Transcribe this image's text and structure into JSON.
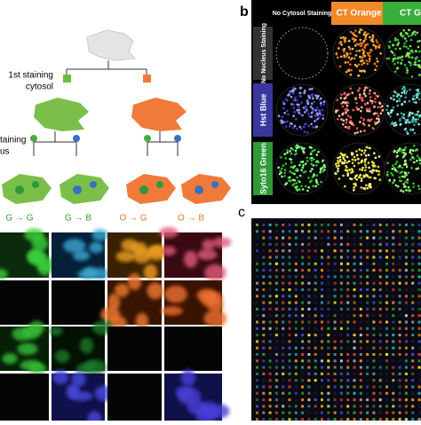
{
  "panel_labels": {
    "b": "b",
    "c": "c"
  },
  "panel_a": {
    "staining_1": [
      "1st staining",
      "cytosol"
    ],
    "staining_2": [
      "taining",
      "us"
    ],
    "transitions": [
      "G → G",
      "G → B",
      "O → G",
      "O → B"
    ]
  },
  "panel_b": {
    "column_headers": [
      "No Cytosol Staining",
      "CT Orange",
      "CT G"
    ],
    "row_headers": [
      "No Nucleus Staining",
      "Hst Blue",
      "Syto16 Green"
    ]
  }
}
